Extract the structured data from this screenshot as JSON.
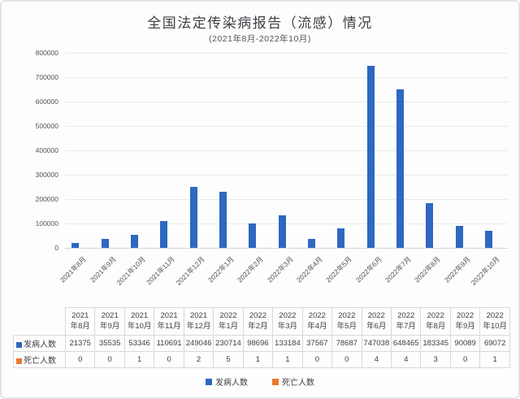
{
  "title": "全国法定传染病报告（流感）情况",
  "subtitle": "(2021年8月-2022年10月)",
  "colors": {
    "cases": "#2e68c0",
    "deaths": "#e8792e",
    "grid": "#e9e9ed",
    "axis_text": "#55555c",
    "table_border": "#d9d9de",
    "text": "#404046"
  },
  "chart_data": {
    "type": "bar",
    "title": "全国法定传染病报告（流感）情况",
    "subtitle": "(2021年8月-2022年10月)",
    "categories": [
      "2021年8月",
      "2021年9月",
      "2021年10月",
      "2021年11月",
      "2021年12月",
      "2022年1月",
      "2022年2月",
      "2022年3月",
      "2022年4月",
      "2022年5月",
      "2022年6月",
      "2022年7月",
      "2022年8月",
      "2022年9月",
      "2022年10月"
    ],
    "series": [
      {
        "name": "发病人数",
        "color": "#2e68c0",
        "values": [
          21375,
          35535,
          53346,
          110691,
          249046,
          230714,
          98696,
          133184,
          37567,
          78687,
          747038,
          648465,
          183345,
          90089,
          69072
        ]
      },
      {
        "name": "死亡人数",
        "color": "#e8792e",
        "values": [
          0,
          0,
          1,
          0,
          2,
          5,
          1,
          1,
          0,
          0,
          4,
          4,
          3,
          0,
          1
        ]
      }
    ],
    "xlabel": "",
    "ylabel": "",
    "ylim": [
      0,
      800000
    ],
    "ytick_step": 100000,
    "yticks": [
      0,
      100000,
      200000,
      300000,
      400000,
      500000,
      600000,
      700000,
      800000
    ],
    "grid": true,
    "legend_position": "bottom"
  }
}
